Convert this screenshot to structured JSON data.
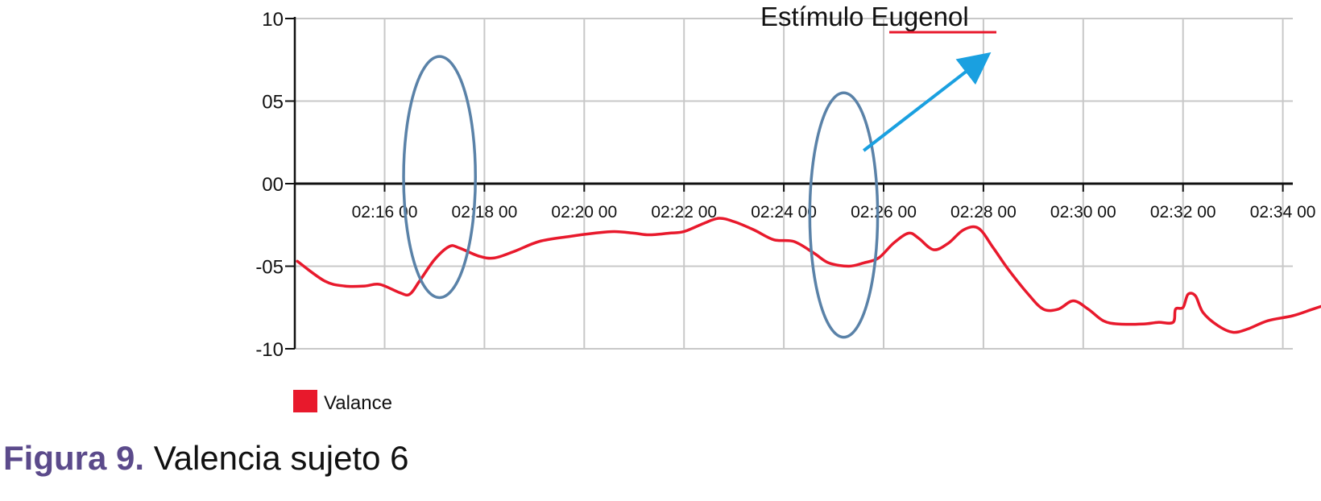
{
  "chart_data": {
    "type": "line",
    "y_tick_labels": [
      "10",
      "05",
      "00",
      "-05",
      "-10"
    ],
    "y_tick_values": [
      10,
      5,
      0,
      -5,
      -10
    ],
    "ylim": [
      -10,
      10
    ],
    "x_tick_labels": [
      "02:16 00",
      "02:18 00",
      "02:20 00",
      "02:22 00",
      "02:24 00",
      "02:26 00",
      "02:28 00",
      "02:30 00",
      "02:32 00",
      "02:34 00"
    ],
    "x_tick_values": [
      16,
      18,
      20,
      22,
      24,
      26,
      28,
      30,
      32,
      34
    ],
    "xlim": [
      14.2,
      34.2
    ],
    "x_unit": "minutes after 02:00",
    "grid": true,
    "legend_position": "bottom-left",
    "annotation": {
      "text_prefix": "Estímulo ",
      "text_keyword": "Eugenol",
      "keyword_underline_color": "#e8192c",
      "arrow_color": "#1aa0e0",
      "arrow_from": [
        25.6,
        2
      ],
      "arrow_to": [
        28.0,
        7.6
      ]
    },
    "highlights": [
      {
        "center_x": 17.1,
        "center_y": 0.4,
        "half_width_x": 0.72,
        "half_height_y": 7.3,
        "color": "#5a82a8"
      },
      {
        "center_x": 25.2,
        "center_y": -1.9,
        "half_width_x": 0.68,
        "half_height_y": 7.4,
        "color": "#5a82a8"
      }
    ],
    "series": [
      {
        "name": "Valance",
        "color": "#e8192c",
        "points": [
          [
            14.25,
            -4.7
          ],
          [
            14.8,
            -5.9
          ],
          [
            15.2,
            -6.2
          ],
          [
            15.6,
            -6.2
          ],
          [
            15.9,
            -6.1
          ],
          [
            16.3,
            -6.6
          ],
          [
            16.5,
            -6.7
          ],
          [
            16.7,
            -5.9
          ],
          [
            17.0,
            -4.6
          ],
          [
            17.3,
            -3.8
          ],
          [
            17.5,
            -3.9
          ],
          [
            17.9,
            -4.4
          ],
          [
            18.2,
            -4.5
          ],
          [
            18.6,
            -4.1
          ],
          [
            19.1,
            -3.5
          ],
          [
            19.7,
            -3.2
          ],
          [
            20.2,
            -3.0
          ],
          [
            20.6,
            -2.9
          ],
          [
            21.0,
            -3.0
          ],
          [
            21.3,
            -3.1
          ],
          [
            21.7,
            -3.0
          ],
          [
            22.0,
            -2.9
          ],
          [
            22.4,
            -2.4
          ],
          [
            22.7,
            -2.1
          ],
          [
            23.0,
            -2.3
          ],
          [
            23.4,
            -2.8
          ],
          [
            23.8,
            -3.4
          ],
          [
            24.2,
            -3.5
          ],
          [
            24.6,
            -4.2
          ],
          [
            24.9,
            -4.8
          ],
          [
            25.3,
            -5.0
          ],
          [
            25.6,
            -4.8
          ],
          [
            25.9,
            -4.5
          ],
          [
            26.2,
            -3.6
          ],
          [
            26.5,
            -3.0
          ],
          [
            26.7,
            -3.3
          ],
          [
            27.0,
            -4.0
          ],
          [
            27.3,
            -3.6
          ],
          [
            27.6,
            -2.8
          ],
          [
            27.9,
            -2.7
          ],
          [
            28.2,
            -3.9
          ],
          [
            28.5,
            -5.2
          ],
          [
            28.9,
            -6.7
          ],
          [
            29.2,
            -7.6
          ],
          [
            29.5,
            -7.6
          ],
          [
            29.8,
            -7.1
          ],
          [
            30.1,
            -7.6
          ],
          [
            30.4,
            -8.3
          ],
          [
            30.7,
            -8.5
          ],
          [
            31.2,
            -8.5
          ],
          [
            31.5,
            -8.4
          ],
          [
            31.8,
            -8.4
          ],
          [
            31.85,
            -7.6
          ],
          [
            32.0,
            -7.5
          ],
          [
            32.1,
            -6.7
          ],
          [
            32.25,
            -6.8
          ],
          [
            32.4,
            -7.8
          ],
          [
            32.7,
            -8.6
          ],
          [
            33.0,
            -9.0
          ],
          [
            33.3,
            -8.8
          ],
          [
            33.7,
            -8.3
          ],
          [
            34.2,
            -8.0
          ],
          [
            34.6,
            -7.6
          ],
          [
            35.0,
            -7.2
          ]
        ]
      }
    ]
  },
  "legend": {
    "swatch_color": "#e8192c",
    "label": "Valance"
  },
  "caption": {
    "label": "Figura 9.",
    "text": " Valencia sujeto 6"
  }
}
